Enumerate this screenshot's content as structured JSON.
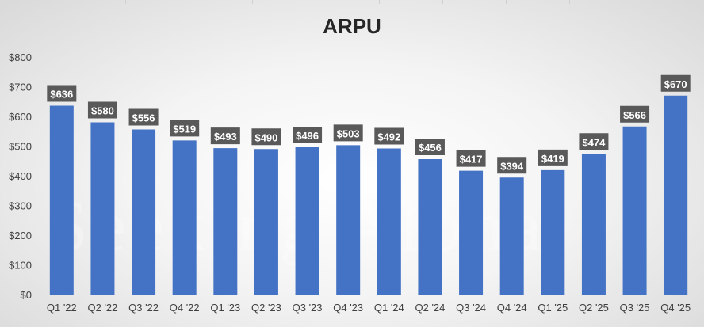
{
  "chart_data": {
    "type": "bar",
    "title": "ARPU",
    "categories": [
      "Q1 '22",
      "Q2 '22",
      "Q3 '22",
      "Q4 '22",
      "Q1 '23",
      "Q2 '23",
      "Q3 '23",
      "Q4 '23",
      "Q1 '24",
      "Q2 '24",
      "Q3 '24",
      "Q4 '24",
      "Q1 '25",
      "Q2 '25",
      "Q3 '25",
      "Q4 '25"
    ],
    "values": [
      636,
      580,
      556,
      519,
      493,
      490,
      496,
      503,
      492,
      456,
      417,
      394,
      419,
      474,
      566,
      670
    ],
    "data_labels": [
      "$636",
      "$580",
      "$556",
      "$519",
      "$493",
      "$490",
      "$496",
      "$503",
      "$492",
      "$456",
      "$417",
      "$394",
      "$419",
      "$474",
      "$566",
      "$670"
    ],
    "ylim": [
      0,
      800
    ],
    "y_ticks": [
      "$0",
      "$100",
      "$200",
      "$300",
      "$400",
      "$500",
      "$600",
      "$700",
      "$800"
    ],
    "xlabel": "",
    "ylabel": "",
    "grid": false,
    "legend": "none",
    "bar_color": "#4472C4",
    "label_bg_color": "#595959"
  },
  "watermark": "Seeking Alpha"
}
